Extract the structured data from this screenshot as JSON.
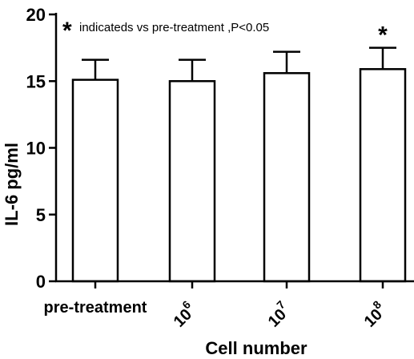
{
  "chart_data": {
    "type": "bar",
    "categories": [
      "pre-treatment",
      "10^6",
      "10^7",
      "10^8"
    ],
    "category_labels": [
      {
        "base": "pre-treatment",
        "exp": ""
      },
      {
        "base": "10",
        "exp": "6"
      },
      {
        "base": "10",
        "exp": "7"
      },
      {
        "base": "10",
        "exp": "8"
      }
    ],
    "values": [
      15.1,
      15.0,
      15.6,
      15.9
    ],
    "error_upper": [
      1.5,
      1.6,
      1.6,
      1.6
    ],
    "significant": [
      false,
      false,
      false,
      true
    ],
    "significance_marker": "*",
    "annotation": {
      "marker": "*",
      "text": "indicateds vs pre-treatment ,P<0.05"
    },
    "xlabel": "Cell number",
    "ylabel": "IL-6  pg/ml",
    "ylim": [
      0,
      20
    ],
    "yticks": [
      "0",
      "5",
      "10",
      "15",
      "20"
    ],
    "grid": false,
    "colors": {
      "bar_fill": "#ffffff",
      "bar_edge": "#000000"
    }
  }
}
